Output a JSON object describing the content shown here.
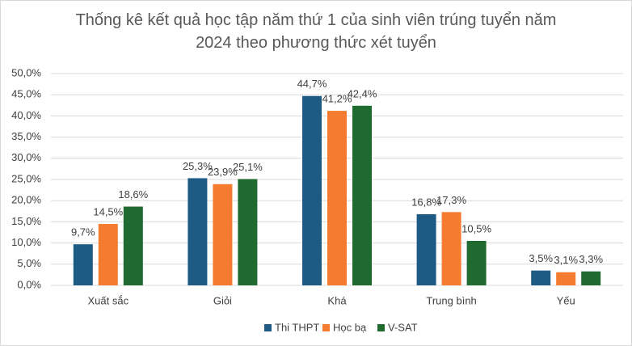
{
  "chart_data": {
    "type": "bar",
    "title": "Thống kê kết quả học tập năm thứ 1 của sinh viên trúng tuyển năm 2024 theo phương thức xét tuyển",
    "categories": [
      "Xuất sắc",
      "Giỏi",
      "Khá",
      "Trung bình",
      "Yếu"
    ],
    "series": [
      {
        "name": "Thi THPT",
        "color": "#1d5a84",
        "values": [
          9.7,
          25.3,
          44.7,
          16.8,
          3.5
        ],
        "value_labels": [
          "9,7%",
          "25,3%",
          "44,7%",
          "16,8%",
          "3,5%"
        ]
      },
      {
        "name": "Học bạ",
        "color": "#f47b2f",
        "values": [
          14.5,
          23.9,
          41.2,
          17.3,
          3.1
        ],
        "value_labels": [
          "14,5%",
          "23,9%",
          "41,2%",
          "17,3%",
          "3,1%"
        ]
      },
      {
        "name": "V-SAT",
        "color": "#1e6a2f",
        "values": [
          18.6,
          25.1,
          42.4,
          10.5,
          3.3
        ],
        "value_labels": [
          "18,6%",
          "25,1%",
          "42,4%",
          "10,5%",
          "3,3%"
        ]
      }
    ],
    "ylim": [
      0,
      50
    ],
    "yticks": [
      {
        "value": 0,
        "label": "0,0%"
      },
      {
        "value": 5,
        "label": "5,0%"
      },
      {
        "value": 10,
        "label": "10,0%"
      },
      {
        "value": 15,
        "label": "15,0%"
      },
      {
        "value": 20,
        "label": "20,0%"
      },
      {
        "value": 25,
        "label": "25,0%"
      },
      {
        "value": 30,
        "label": "30,0%"
      },
      {
        "value": 35,
        "label": "35,0%"
      },
      {
        "value": 40,
        "label": "40,0%"
      },
      {
        "value": 45,
        "label": "45,0%"
      },
      {
        "value": 50,
        "label": "50,0%"
      }
    ],
    "grid": true,
    "legend": "bottom"
  }
}
